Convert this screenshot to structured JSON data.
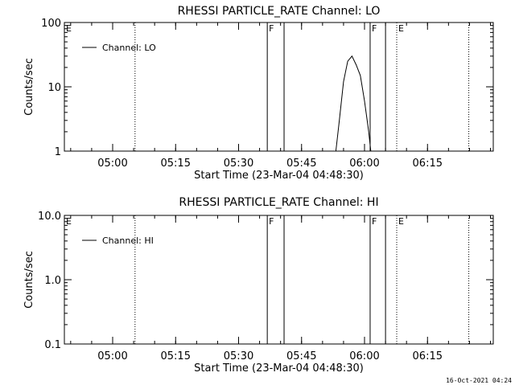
{
  "footer": "16-Oct-2021 04:24",
  "chart_data": [
    {
      "type": "line",
      "title": "RHESSI PARTICLE_RATE Channel: LO",
      "xlabel": "Start Time (23-Mar-04 04:48:30)",
      "ylabel": "Counts/sec",
      "yscale": "log",
      "ylim": [
        1,
        100
      ],
      "yticks": [
        1,
        10,
        100
      ],
      "ytick_labels": [
        "1",
        "10",
        "100"
      ],
      "xlim": [
        "04:48:30",
        "06:30:40"
      ],
      "xticks": [
        "05:00",
        "05:15",
        "05:30",
        "05:45",
        "06:00",
        "06:15"
      ],
      "legend": {
        "label": "Channel: LO",
        "position": "top-left"
      },
      "series": [
        {
          "name": "Channel: LO",
          "x": [
            "05:53:10",
            "05:54:00",
            "05:55:00",
            "05:56:00",
            "05:57:00",
            "05:58:00",
            "05:59:00",
            "06:00:00",
            "06:01:00",
            "06:01:30"
          ],
          "y": [
            1.0,
            3.0,
            12.0,
            25.0,
            30.0,
            22.0,
            15.0,
            6.0,
            2.0,
            1.0
          ]
        }
      ],
      "markers": [
        {
          "time": "05:05:20",
          "style": "dotted",
          "label": ""
        },
        {
          "time": "05:36:50",
          "style": "solid",
          "label": "F"
        },
        {
          "time": "05:40:50",
          "style": "solid",
          "label": ""
        },
        {
          "time": "06:01:20",
          "style": "solid",
          "label": "F"
        },
        {
          "time": "06:05:00",
          "style": "solid",
          "label": ""
        },
        {
          "time": "06:07:40",
          "style": "dotted",
          "label": "E"
        },
        {
          "time": "06:24:50",
          "style": "dotted",
          "label": ""
        }
      ],
      "corner_label": "E"
    },
    {
      "type": "line",
      "title": "RHESSI PARTICLE_RATE Channel: HI",
      "xlabel": "Start Time (23-Mar-04 04:48:30)",
      "ylabel": "Counts/sec",
      "yscale": "log",
      "ylim": [
        0.1,
        10
      ],
      "yticks": [
        0.1,
        1,
        10
      ],
      "ytick_labels": [
        "0.1",
        "1.0",
        "10.0"
      ],
      "xlim": [
        "04:48:30",
        "06:30:40"
      ],
      "xticks": [
        "05:00",
        "05:15",
        "05:30",
        "05:45",
        "06:00",
        "06:15"
      ],
      "legend": {
        "label": "Channel: HI",
        "position": "top-left"
      },
      "series": [
        {
          "name": "Channel: HI",
          "x": [],
          "y": []
        }
      ],
      "markers": [
        {
          "time": "05:05:20",
          "style": "dotted",
          "label": ""
        },
        {
          "time": "05:36:50",
          "style": "solid",
          "label": "F"
        },
        {
          "time": "05:40:50",
          "style": "solid",
          "label": ""
        },
        {
          "time": "06:01:20",
          "style": "solid",
          "label": "F"
        },
        {
          "time": "06:05:00",
          "style": "solid",
          "label": ""
        },
        {
          "time": "06:07:40",
          "style": "dotted",
          "label": "E"
        },
        {
          "time": "06:24:50",
          "style": "dotted",
          "label": ""
        }
      ],
      "corner_label": "E"
    }
  ]
}
